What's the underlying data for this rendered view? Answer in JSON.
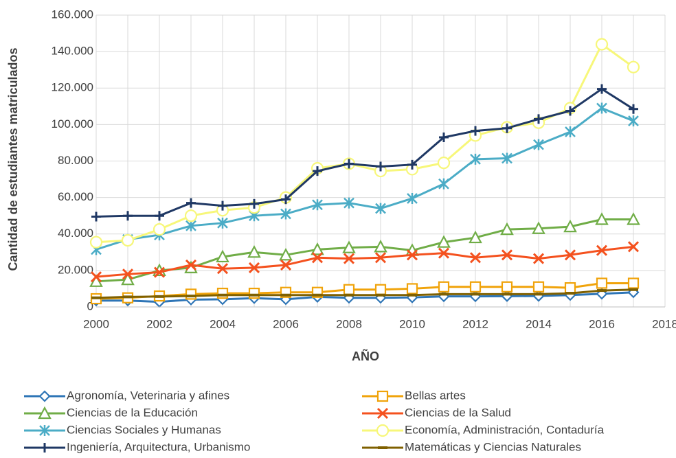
{
  "chart_data": {
    "type": "line",
    "x_label": "AÑO",
    "y_label": "Cantidad de estudiantes matriculados",
    "x": [
      2000,
      2001,
      2002,
      2003,
      2004,
      2005,
      2006,
      2007,
      2008,
      2009,
      2010,
      2011,
      2012,
      2013,
      2014,
      2015,
      2016,
      2017
    ],
    "xlim": [
      2000,
      2018
    ],
    "xticks": [
      2000,
      2002,
      2004,
      2006,
      2008,
      2010,
      2012,
      2014,
      2016,
      2018
    ],
    "ylim": [
      0,
      160000
    ],
    "yticks": [
      0,
      {
        "value": 20000,
        "label": "20.000"
      },
      {
        "value": 40000,
        "label": "40.000"
      },
      {
        "value": 60000,
        "label": "60.000"
      },
      {
        "value": 80000,
        "label": "80.000"
      },
      {
        "value": 100000,
        "label": "100.000"
      },
      {
        "value": 120000,
        "label": "120.000"
      },
      {
        "value": 140000,
        "label": "140.000"
      },
      {
        "value": 160000,
        "label": "160.000"
      }
    ],
    "grid": true,
    "legend": "bottom",
    "series": [
      {
        "name": "Agronomía, Veterinaria y afines",
        "color": "#2e75b6",
        "marker": "diamond",
        "values": [
          3500,
          3500,
          2800,
          4000,
          4200,
          4800,
          4200,
          5500,
          5000,
          5000,
          5200,
          5800,
          5800,
          5900,
          6000,
          6500,
          7200,
          8000
        ]
      },
      {
        "name": "Bellas artes",
        "color": "#f0a30a",
        "marker": "square",
        "values": [
          4500,
          5000,
          6000,
          7000,
          7500,
          7500,
          8000,
          8000,
          9500,
          9500,
          10000,
          11000,
          11000,
          11000,
          11000,
          10500,
          13000,
          13000
        ]
      },
      {
        "name": "Ciencias de la Educación",
        "color": "#70ad47",
        "marker": "triangle",
        "values": [
          14000,
          15000,
          20000,
          21500,
          27500,
          30000,
          28500,
          31500,
          32500,
          33000,
          31000,
          35500,
          38000,
          42500,
          43000,
          44000,
          48000,
          48000
        ]
      },
      {
        "name": "Ciencias de la Salud",
        "color": "#f4511e",
        "marker": "x",
        "values": [
          16500,
          18000,
          19000,
          23000,
          21000,
          21500,
          23000,
          27000,
          26500,
          27000,
          28500,
          29500,
          27000,
          28500,
          26500,
          28500,
          31000,
          33000
        ]
      },
      {
        "name": "Ciencias Sociales y Humanas",
        "color": "#4bacc6",
        "marker": "star",
        "values": [
          31500,
          37000,
          39500,
          44500,
          46000,
          50000,
          51000,
          56000,
          57000,
          54000,
          59500,
          67500,
          81000,
          81500,
          89000,
          96000,
          109000,
          102000
        ]
      },
      {
        "name": "Economía, Administración, Contaduría",
        "color": "#f7f77a",
        "marker": "circle",
        "values": [
          35500,
          36500,
          42500,
          50000,
          53000,
          54500,
          60000,
          76000,
          78500,
          74500,
          75500,
          79000,
          94000,
          98500,
          101000,
          109000,
          144000,
          131500
        ]
      },
      {
        "name": "Ingeniería, Arquitectura, Urbanismo",
        "color": "#1f3864",
        "marker": "plus",
        "values": [
          49500,
          50000,
          50000,
          57000,
          55500,
          56500,
          59000,
          74500,
          78500,
          77000,
          78000,
          93000,
          96500,
          98000,
          103000,
          107500,
          119500,
          108500
        ]
      },
      {
        "name": "Matemáticas y Ciencias Naturales",
        "color": "#7f6000",
        "marker": "dash",
        "values": [
          5000,
          5500,
          5700,
          6000,
          6500,
          6500,
          6500,
          6500,
          6500,
          6500,
          6500,
          7000,
          7000,
          7000,
          7000,
          7500,
          9000,
          9500
        ]
      }
    ]
  }
}
